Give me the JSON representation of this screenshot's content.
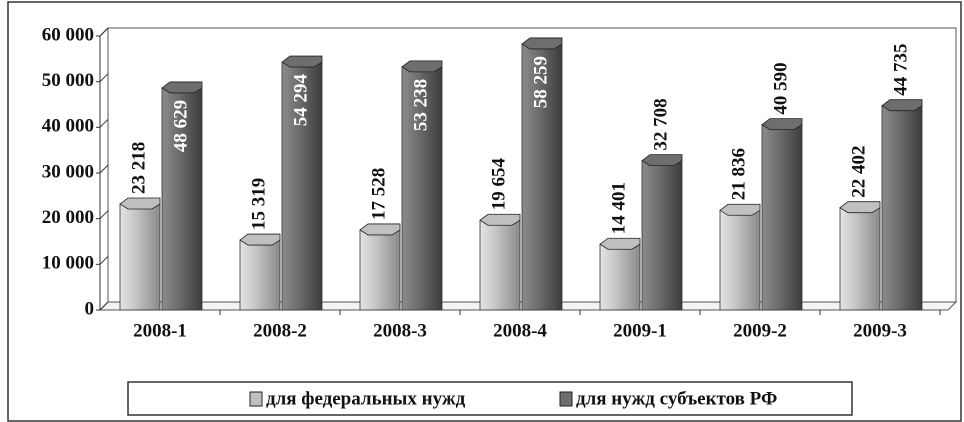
{
  "chart_data": {
    "type": "bar",
    "categories": [
      "2008-1",
      "2008-2",
      "2008-3",
      "2008-4",
      "2009-1",
      "2009-2",
      "2009-3"
    ],
    "series": [
      {
        "name": "для федеральных нужд",
        "color": "#c0c0c0",
        "values": [
          23218,
          15319,
          17528,
          19654,
          14401,
          21836,
          22402
        ],
        "value_labels": [
          "23 218",
          "15 319",
          "17 528",
          "19 654",
          "14 401",
          "21 836",
          "22 402"
        ]
      },
      {
        "name": "для нужд субъектов РФ",
        "color": "#6e6e6e",
        "values": [
          48629,
          54294,
          53238,
          58259,
          32708,
          40590,
          44735
        ],
        "value_labels": [
          "48 629",
          "54 294",
          "53 238",
          "58 259",
          "32 708",
          "40 590",
          "44 735"
        ]
      }
    ],
    "ylim": [
      0,
      60000
    ],
    "yticks": [
      0,
      {
        "value": 10000,
        "label": "10 000"
      },
      {
        "value": 20000,
        "label": "20 000"
      },
      {
        "value": 30000,
        "label": "30 000"
      },
      {
        "value": 40000,
        "label": "40 000"
      },
      {
        "value": 50000,
        "label": "50 000"
      },
      {
        "value": 60000,
        "label": "60 000"
      }
    ]
  }
}
